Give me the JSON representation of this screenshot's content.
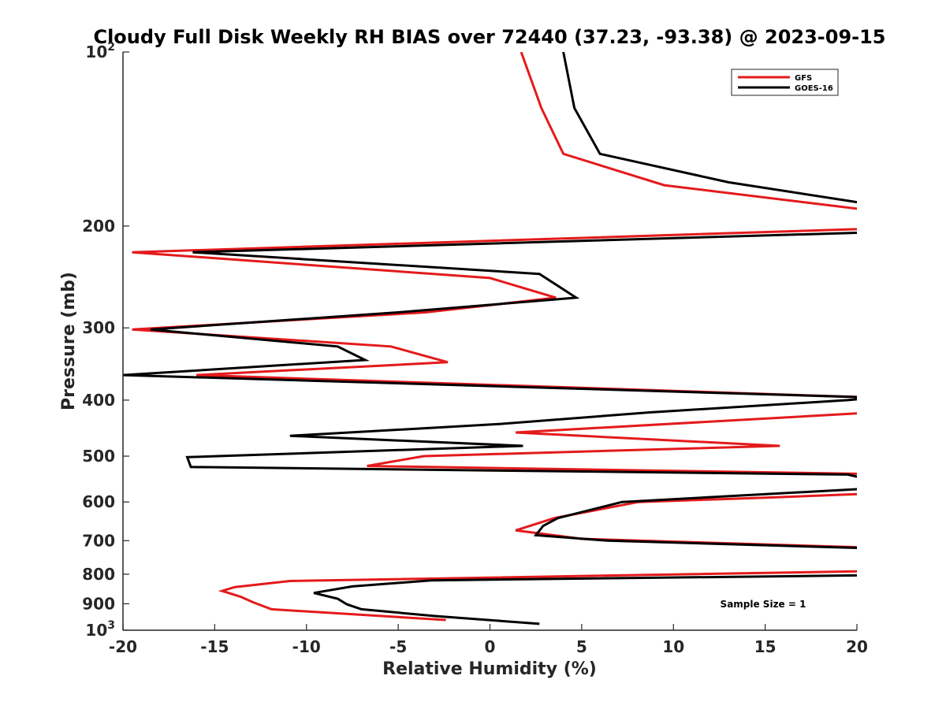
{
  "chart_data": {
    "type": "line",
    "title": "Cloudy Full Disk Weekly RH BIAS over 72440 (37.23, -93.38) @ 2023-09-15",
    "xlabel": "Relative Humidity (%)",
    "ylabel": "Pressure (mb)",
    "xlim": [
      -20,
      20
    ],
    "ylim": [
      100,
      1000
    ],
    "y_scale": "log",
    "y_reversed": true,
    "x_ticks": [
      "-20",
      "-15",
      "-10",
      "-5",
      "0",
      "5",
      "10",
      "15",
      "20"
    ],
    "y_ticks": [
      {
        "value": 100,
        "base": "10",
        "exp": "2"
      },
      {
        "value": 200,
        "label": "200"
      },
      {
        "value": 300,
        "label": "300"
      },
      {
        "value": 400,
        "label": "400"
      },
      {
        "value": 500,
        "label": "500"
      },
      {
        "value": 600,
        "label": "600"
      },
      {
        "value": 700,
        "label": "700"
      },
      {
        "value": 800,
        "label": "800"
      },
      {
        "value": 900,
        "label": "900"
      },
      {
        "value": 1000,
        "base": "10",
        "exp": "3"
      }
    ],
    "legend_position": "top-right",
    "grid": false,
    "annotation": "Sample Size = 1",
    "series": [
      {
        "name": "GFS",
        "color": "#e41a1c",
        "points": [
          [
            1.7,
            100
          ],
          [
            2.8,
            125
          ],
          [
            4.0,
            150
          ],
          [
            9.5,
            170
          ],
          [
            22,
            190
          ],
          [
            21,
            202
          ],
          [
            -19.5,
            222
          ],
          [
            0,
            246
          ],
          [
            3.6,
            266
          ],
          [
            -3.5,
            282
          ],
          [
            -19.5,
            302
          ],
          [
            -5.4,
            323
          ],
          [
            -2.3,
            344
          ],
          [
            -16,
            362
          ],
          [
            21,
            396
          ],
          [
            21,
            420
          ],
          [
            1.4,
            455
          ],
          [
            15.8,
            480
          ],
          [
            -3.6,
            500
          ],
          [
            -6.7,
            520
          ],
          [
            21,
            537
          ],
          [
            21,
            580
          ],
          [
            15,
            590
          ],
          [
            8.1,
            600
          ],
          [
            3.5,
            640
          ],
          [
            1.4,
            672
          ],
          [
            5.0,
            695
          ],
          [
            21,
            720
          ],
          [
            21,
            790
          ],
          [
            -10.9,
            822
          ],
          [
            -13.9,
            842
          ],
          [
            -14.6,
            855
          ],
          [
            -13.6,
            875
          ],
          [
            -12.9,
            895
          ],
          [
            -11.9,
            920
          ],
          [
            -2.4,
            960
          ]
        ]
      },
      {
        "name": "GOES-16",
        "color": "#000000",
        "points": [
          [
            4.0,
            100
          ],
          [
            4.6,
            125
          ],
          [
            6.0,
            150
          ],
          [
            13,
            168
          ],
          [
            22,
            186
          ],
          [
            21,
            205
          ],
          [
            -16.2,
            222
          ],
          [
            2.7,
            242
          ],
          [
            4.7,
            266
          ],
          [
            -5.0,
            282
          ],
          [
            -18.5,
            302
          ],
          [
            -8.3,
            323
          ],
          [
            -6.8,
            341
          ],
          [
            -20,
            362
          ],
          [
            21,
            396
          ],
          [
            19.5,
            400
          ],
          [
            8.7,
            420
          ],
          [
            0.5,
            440
          ],
          [
            -10.9,
            461
          ],
          [
            1.8,
            480
          ],
          [
            -16.5,
            502
          ],
          [
            -16.3,
            522
          ],
          [
            19.5,
            538
          ],
          [
            20.5,
            547
          ],
          [
            21,
            568
          ],
          [
            7.2,
            600
          ],
          [
            3.7,
            640
          ],
          [
            2.9,
            660
          ],
          [
            2.5,
            685
          ],
          [
            6.4,
            700
          ],
          [
            21,
            722
          ],
          [
            21,
            803
          ],
          [
            -3.2,
            820
          ],
          [
            -7.5,
            840
          ],
          [
            -9.6,
            862
          ],
          [
            -8.3,
            882
          ],
          [
            -7.8,
            902
          ],
          [
            -7.0,
            920
          ],
          [
            -3.0,
            945
          ],
          [
            2.7,
            975
          ]
        ]
      }
    ]
  }
}
